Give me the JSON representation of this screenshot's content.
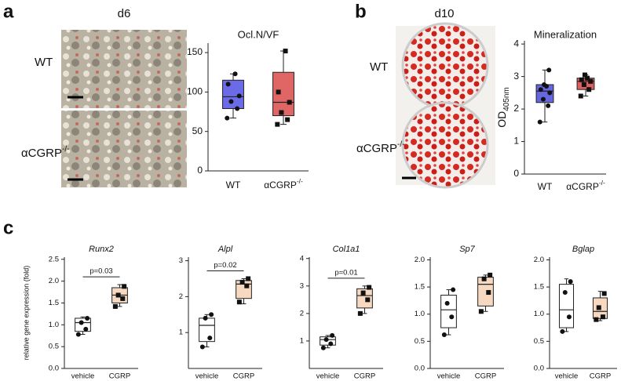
{
  "figure": {
    "panel_labels": [
      "a",
      "b",
      "c"
    ],
    "panel_a": {
      "timepoint": "d6",
      "rows": [
        "WT",
        {
          "text": "αCGRP",
          "sup": "-/-"
        }
      ]
    },
    "panel_b": {
      "timepoint": "d10",
      "rows": [
        "WT",
        {
          "text": "αCGRP",
          "sup": "-/-"
        }
      ]
    }
  },
  "chart_data": [
    {
      "type": "box",
      "title": "Ocl.N/VF",
      "categories": [
        "WT",
        {
          "text": "αCGRP",
          "sup": "-/-"
        }
      ],
      "boxes": [
        {
          "min": 67,
          "q1": 79,
          "median": 94,
          "q3": 115,
          "max": 123,
          "points": [
            67,
            79,
            88,
            95,
            110,
            123
          ],
          "color": "#6b6be8",
          "marker": "circle"
        },
        {
          "min": 59,
          "q1": 70,
          "median": 87,
          "q3": 125,
          "max": 152,
          "points": [
            59,
            65,
            74,
            87,
            100,
            152
          ],
          "color": "#e06666",
          "marker": "square"
        }
      ],
      "ylim": [
        0,
        162
      ],
      "yticks": [
        0,
        50,
        100,
        150
      ]
    },
    {
      "type": "box",
      "title": "Mineralization",
      "y_label": {
        "text": "OD",
        "sub": "405nm"
      },
      "categories": [
        "WT",
        {
          "text": "αCGRP",
          "sup": "-/-"
        }
      ],
      "boxes": [
        {
          "min": 1.6,
          "q1": 2.2,
          "median": 2.55,
          "q3": 2.75,
          "max": 3.2,
          "points": [
            1.6,
            2.1,
            2.3,
            2.5,
            2.6,
            2.7,
            2.75,
            3.2
          ],
          "color": "#6666e0",
          "marker": "circle"
        },
        {
          "min": 2.4,
          "q1": 2.6,
          "median": 2.85,
          "q3": 2.95,
          "max": 3.05,
          "points": [
            2.4,
            2.6,
            2.75,
            2.85,
            2.9,
            2.95,
            3.05
          ],
          "color": "#dd6060",
          "marker": "square"
        }
      ],
      "ylim": [
        0,
        4.1
      ],
      "yticks": [
        0,
        1,
        2,
        3,
        4
      ]
    },
    {
      "type": "box",
      "title": "Runx2",
      "y_label": "relative gene expression (fold)",
      "annotation": "p=0.03",
      "categories": [
        "vehicle",
        "CGRP"
      ],
      "boxes": [
        {
          "min": 0.78,
          "q1": 0.85,
          "median": 1.05,
          "q3": 1.15,
          "max": 1.18,
          "points": [
            0.78,
            0.9,
            1.05,
            1.15
          ],
          "color": "#ffffff",
          "marker": "circle"
        },
        {
          "min": 1.42,
          "q1": 1.5,
          "median": 1.68,
          "q3": 1.85,
          "max": 1.92,
          "points": [
            1.42,
            1.6,
            1.68,
            1.88
          ],
          "color": "#f6d9c0",
          "marker": "square"
        }
      ],
      "ylim": [
        0,
        2.55
      ],
      "yticks": [
        {
          "value": 0,
          "label": "0.0"
        },
        {
          "value": 0.5,
          "label": "0.5"
        },
        {
          "value": 1,
          "label": "1.0"
        },
        {
          "value": 1.5,
          "label": "1.5"
        },
        {
          "value": 2,
          "label": "2.0"
        },
        {
          "value": 2.5,
          "label": "2.5"
        }
      ]
    },
    {
      "type": "box",
      "title": "Alpl",
      "annotation": "p=0.02",
      "categories": [
        "vehicle",
        "CGRP"
      ],
      "boxes": [
        {
          "min": 0.6,
          "q1": 0.75,
          "median": 1.2,
          "q3": 1.4,
          "max": 1.5,
          "points": [
            0.6,
            0.85,
            1.4,
            1.5
          ],
          "color": "#ffffff",
          "marker": "circle"
        },
        {
          "min": 1.8,
          "q1": 1.95,
          "median": 2.35,
          "q3": 2.45,
          "max": 2.5,
          "points": [
            1.85,
            2.3,
            2.4,
            2.5
          ],
          "color": "#f6d9c0",
          "marker": "square"
        }
      ],
      "ylim": [
        0,
        3.1
      ],
      "yticks": [
        1,
        2,
        3
      ]
    },
    {
      "type": "box",
      "title": "Col1a1",
      "annotation": "p=0.01",
      "categories": [
        "vehicle",
        "CGRP"
      ],
      "boxes": [
        {
          "min": 0.75,
          "q1": 0.85,
          "median": 1.05,
          "q3": 1.15,
          "max": 1.2,
          "points": [
            0.75,
            0.9,
            1.05,
            1.2
          ],
          "color": "#ffffff",
          "marker": "circle"
        },
        {
          "min": 2.0,
          "q1": 2.2,
          "median": 2.65,
          "q3": 2.9,
          "max": 3.0,
          "points": [
            2.0,
            2.5,
            2.75,
            2.95
          ],
          "color": "#f6d9c0",
          "marker": "square"
        }
      ],
      "ylim": [
        0,
        4.05
      ],
      "yticks": [
        1,
        2,
        3,
        4
      ]
    },
    {
      "type": "box",
      "title": "Sp7",
      "categories": [
        "vehicle",
        "CGRP"
      ],
      "boxes": [
        {
          "min": 0.62,
          "q1": 0.75,
          "median": 1.08,
          "q3": 1.35,
          "max": 1.45,
          "points": [
            0.62,
            0.95,
            1.2,
            1.45
          ],
          "color": "#ffffff",
          "marker": "circle"
        },
        {
          "min": 1.05,
          "q1": 1.15,
          "median": 1.55,
          "q3": 1.68,
          "max": 1.72,
          "points": [
            1.05,
            1.4,
            1.65,
            1.72
          ],
          "color": "#f6d9c0",
          "marker": "square"
        }
      ],
      "ylim": [
        0,
        2.05
      ],
      "yticks": [
        {
          "value": 0,
          "label": "0.0"
        },
        {
          "value": 0.5,
          "label": "0.5"
        },
        {
          "value": 1,
          "label": "1.0"
        },
        {
          "value": 1.5,
          "label": "1.5"
        },
        {
          "value": 2,
          "label": "2.0"
        }
      ]
    },
    {
      "type": "box",
      "title": "Bglap",
      "categories": [
        "vehicle",
        "CGRP"
      ],
      "boxes": [
        {
          "min": 0.68,
          "q1": 0.75,
          "median": 1.08,
          "q3": 1.55,
          "max": 1.65,
          "points": [
            0.68,
            0.95,
            1.4,
            1.6
          ],
          "color": "#ffffff",
          "marker": "circle"
        },
        {
          "min": 0.88,
          "q1": 0.92,
          "median": 1.05,
          "q3": 1.3,
          "max": 1.42,
          "points": [
            0.9,
            0.95,
            1.12,
            1.38
          ],
          "color": "#f6d9c0",
          "marker": "square"
        }
      ],
      "ylim": [
        0,
        2.05
      ],
      "yticks": [
        {
          "value": 0,
          "label": "0.0"
        },
        {
          "value": 0.5,
          "label": "0.5"
        },
        {
          "value": 1,
          "label": "1.0"
        },
        {
          "value": 1.5,
          "label": "1.5"
        },
        {
          "value": 2,
          "label": "2.0"
        }
      ]
    }
  ]
}
